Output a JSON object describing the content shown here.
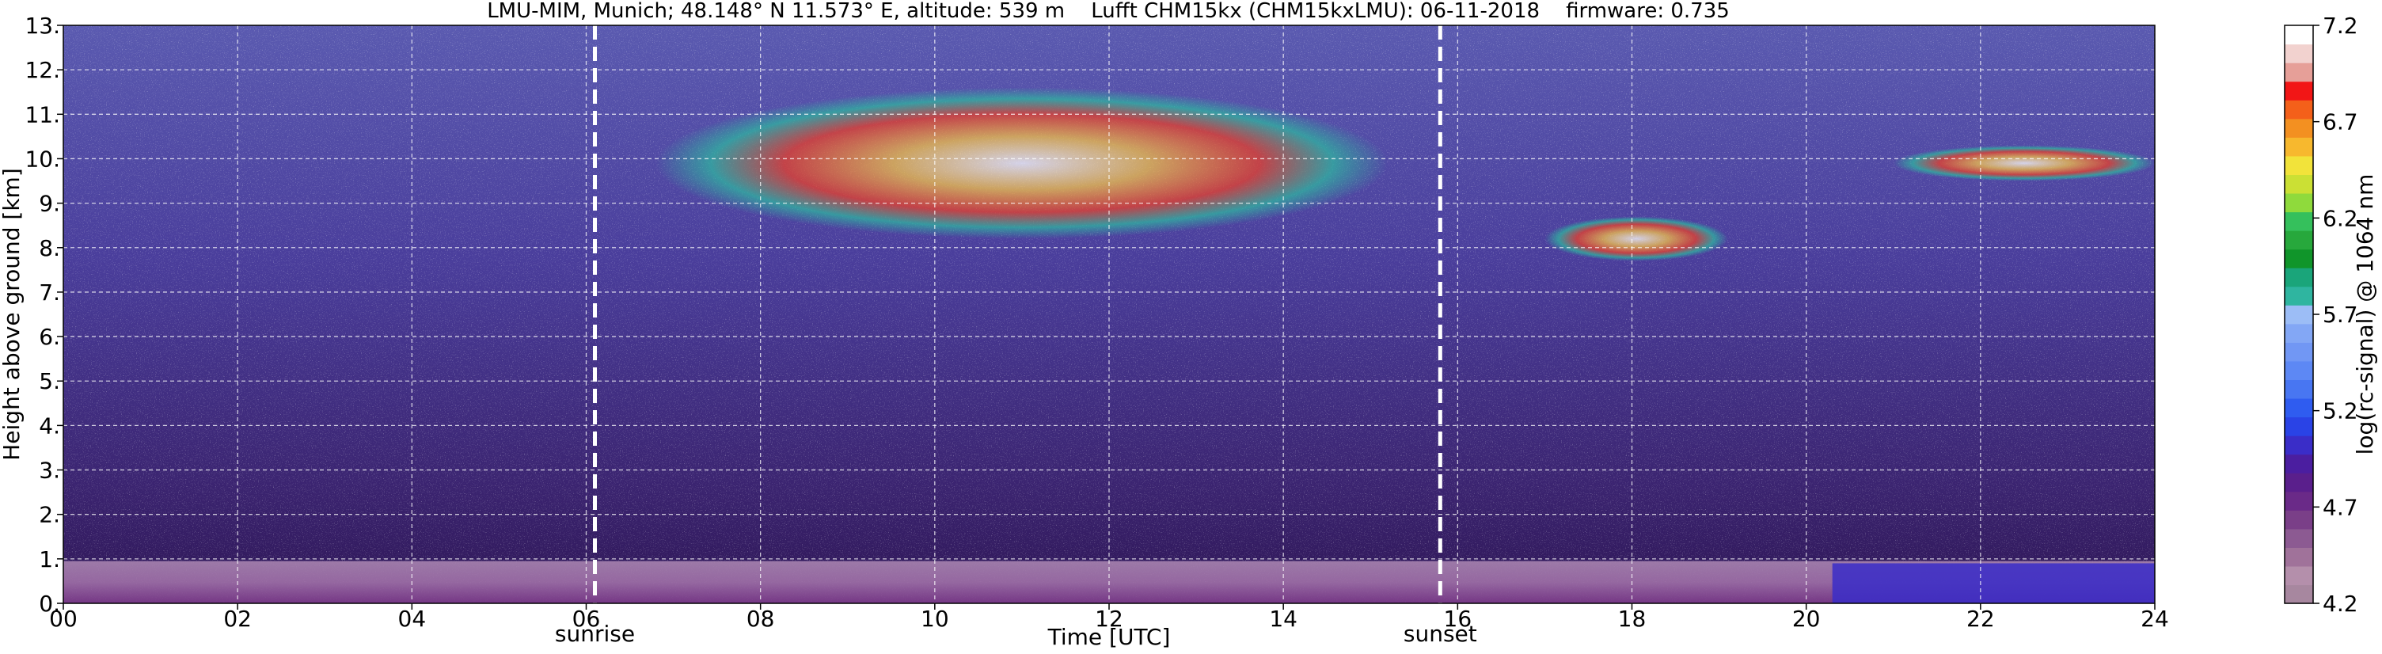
{
  "chart_data": {
    "type": "heatmap",
    "title": "LMU-MIM, Munich; 48.148° N 11.573° E, altitude: 539 m    Lufft CHM15kx (CHM15kxLMU): 06-11-2018    firmware: 0.735",
    "xlabel": "Time [UTC]",
    "ylabel": "Height above ground [km]",
    "xlim": [
      0,
      24
    ],
    "ylim": [
      0,
      13
    ],
    "x_ticks": [
      0,
      2,
      4,
      6,
      8,
      10,
      12,
      14,
      16,
      18,
      20,
      22,
      24
    ],
    "x_tick_labels": [
      "00",
      "02",
      "04",
      "06",
      "08",
      "10",
      "12",
      "14",
      "16",
      "18",
      "20",
      "22",
      "24"
    ],
    "y_ticks": [
      0,
      1,
      2,
      3,
      4,
      5,
      6,
      7,
      8,
      9,
      10,
      11,
      12,
      13
    ],
    "y_tick_labels": [
      "0.",
      "1.",
      "2.",
      "3.",
      "4.",
      "5.",
      "6.",
      "7.",
      "8.",
      "9.",
      "10.",
      "11.",
      "12.",
      "13."
    ],
    "grid": true,
    "markers": [
      {
        "label": "sunrise",
        "x": 6.1
      },
      {
        "label": "sunset",
        "x": 15.8
      }
    ],
    "colorbar": {
      "label": "log(rc-signal) @ 1064 nm",
      "range": [
        4.2,
        7.2
      ],
      "ticks": [
        4.2,
        4.7,
        5.2,
        5.7,
        6.2,
        6.7,
        7.2
      ],
      "tick_labels": [
        "4.2",
        "4.7",
        "5.2",
        "5.7",
        "6.2",
        "6.7",
        "7.2"
      ],
      "colors": [
        "#a7879f",
        "#b48fab",
        "#a0729a",
        "#8c5a92",
        "#7a3f88",
        "#6a2a88",
        "#5a1f8c",
        "#4b1ea0",
        "#3a2dc8",
        "#2a43e6",
        "#2f5cf0",
        "#4876f2",
        "#5d88f4",
        "#7197f4",
        "#83a7f5",
        "#9cbdf6",
        "#2fb5a0",
        "#1aa57a",
        "#10952a",
        "#27a83c",
        "#35c05c",
        "#8fda3c",
        "#cbe034",
        "#f2e33a",
        "#f7b82e",
        "#f39021",
        "#f4601a",
        "#f21616",
        "#e69f98",
        "#f2d2cf",
        "#ffffff"
      ]
    },
    "features": [
      {
        "name": "boundary layer",
        "x": [
          0,
          24
        ],
        "height_km": [
          0,
          0.95
        ],
        "log_signal_approx": 4.6
      },
      {
        "name": "cirrus",
        "x": [
          6.8,
          15.2
        ],
        "height_km": [
          8.2,
          11.6
        ],
        "log_signal_approx": 6.6
      },
      {
        "name": "cirrus",
        "x": [
          17.0,
          19.1
        ],
        "height_km": [
          7.7,
          8.7
        ],
        "log_signal_approx": 6.8
      },
      {
        "name": "cirrus",
        "x": [
          21.0,
          24.0
        ],
        "height_km": [
          9.5,
          10.3
        ],
        "log_signal_approx": 6.7
      },
      {
        "name": "aerosol layer",
        "x": [
          20.3,
          24.0
        ],
        "height_km": [
          0,
          0.9
        ],
        "log_signal_approx": 5.0
      }
    ]
  }
}
